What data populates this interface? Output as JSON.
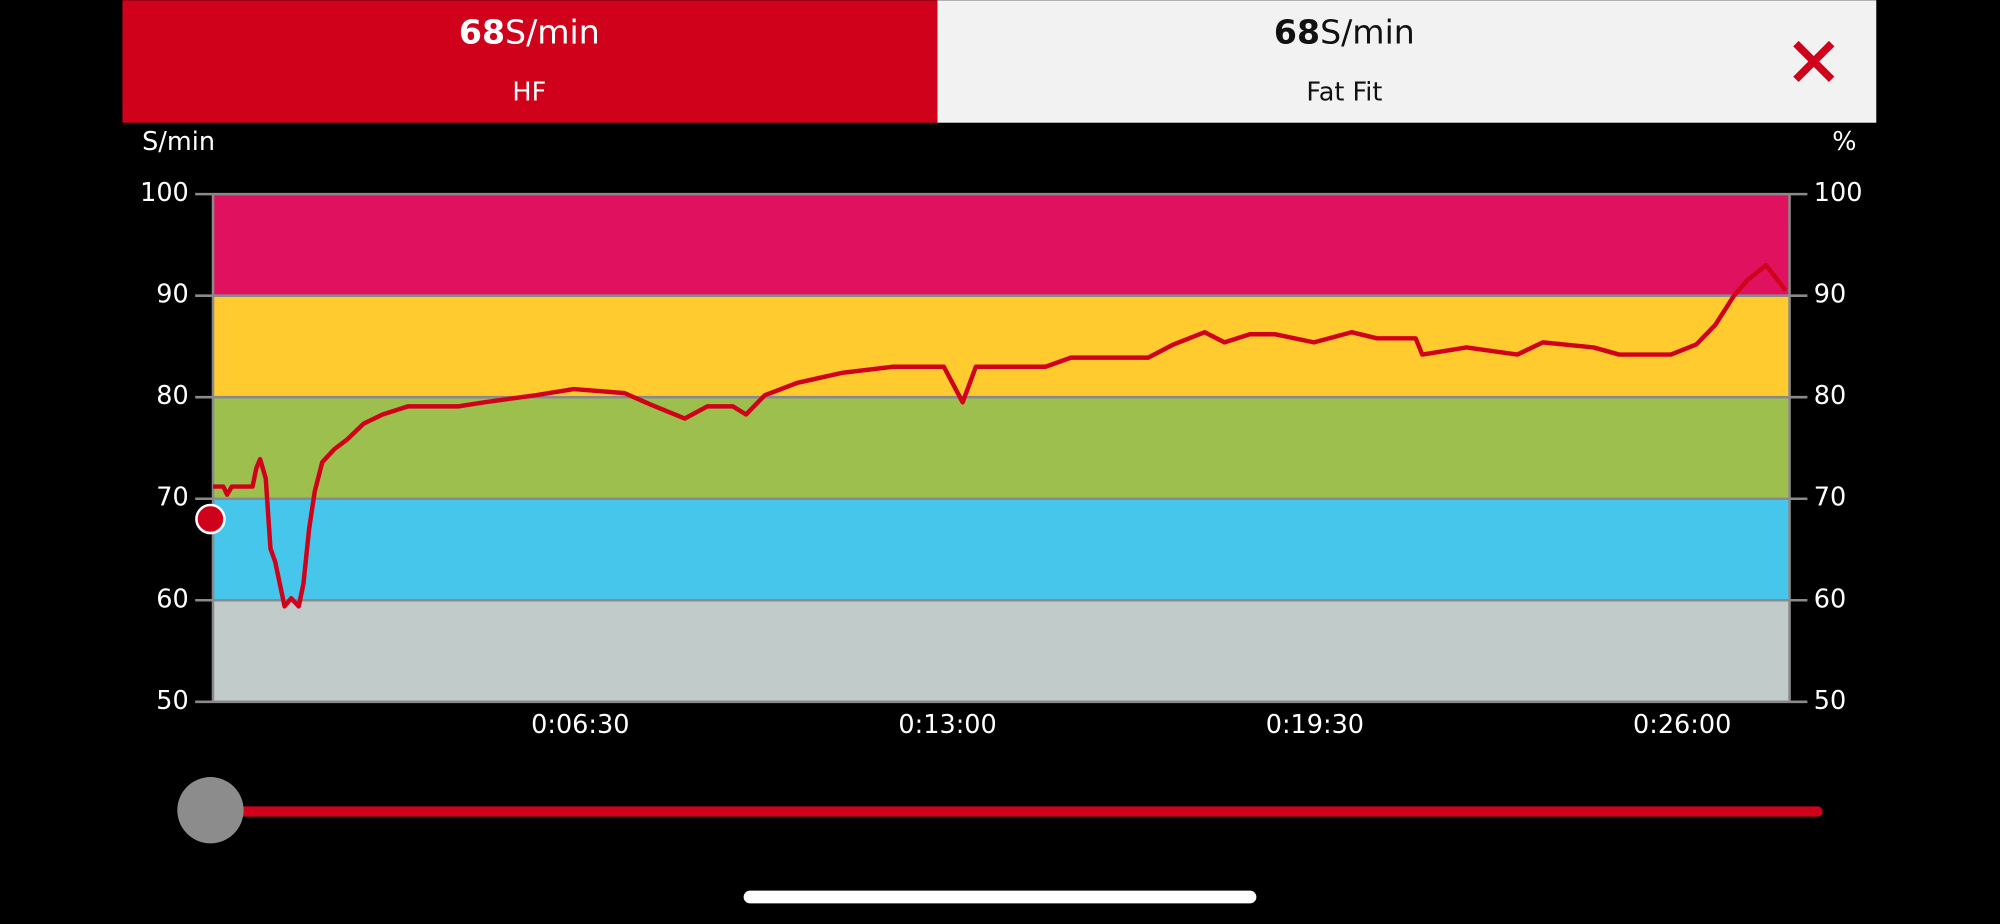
{
  "header": {
    "left": {
      "value": 68,
      "unit": "S/min",
      "label": "HF"
    },
    "right": {
      "value": 68,
      "unit": "S/min",
      "label": "Fat Fit"
    }
  },
  "chart_data": {
    "type": "line",
    "y_label": "S/min",
    "y2_label": "%",
    "xlim": [
      0,
      1674
    ],
    "xticks": [
      {
        "value": 390,
        "label": "0:06:30"
      },
      {
        "value": 780,
        "label": "0:13:00"
      },
      {
        "value": 1170,
        "label": "0:19:30"
      },
      {
        "value": 1560,
        "label": "0:26:00"
      }
    ],
    "ylim": [
      50,
      100
    ],
    "yticks": [
      100,
      90,
      80,
      70,
      60,
      50
    ],
    "y2lim": [
      50,
      100
    ],
    "y2ticks": [
      100,
      90,
      80,
      70,
      60,
      50
    ],
    "bands": [
      {
        "from": 50,
        "to": 60,
        "color": "#c1cbca"
      },
      {
        "from": 60,
        "to": 70,
        "color": "#47c6ec"
      },
      {
        "from": 70,
        "to": 80,
        "color": "#9dbf4d"
      },
      {
        "from": 80,
        "to": 90,
        "color": "#ffcb2f"
      },
      {
        "from": 90,
        "to": 100,
        "color": "#e0115f"
      }
    ],
    "series": [
      {
        "color": "#d0021b",
        "x": [
          0,
          11,
          15,
          20,
          42,
          46,
          50,
          56,
          61,
          66,
          76,
          83,
          91,
          96,
          102,
          108,
          116,
          129,
          142,
          160,
          180,
          207,
          261,
          288,
          343,
          383,
          437,
          464,
          501,
          525,
          552,
          566,
          586,
          620,
          668,
          722,
          776,
          796,
          810,
          884,
          911,
          993,
          1020,
          1053,
          1074,
          1101,
          1128,
          1169,
          1209,
          1236,
          1277,
          1284,
          1331,
          1385,
          1412,
          1466,
          1493,
          1548,
          1575,
          1595,
          1615,
          1629,
          1649,
          1660,
          1670
        ],
        "values": [
          71.2,
          71.2,
          70.4,
          71.2,
          71.2,
          73,
          73.9,
          72,
          65.1,
          63.8,
          59.4,
          60.2,
          59.4,
          61.6,
          67,
          70.7,
          73.6,
          74.9,
          75.8,
          77.4,
          78.3,
          79.1,
          79.1,
          79.5,
          80.2,
          80.8,
          80.4,
          79.3,
          77.9,
          79.1,
          79.1,
          78.3,
          80.2,
          81.4,
          82.4,
          83,
          83,
          79.5,
          83,
          83,
          83.9,
          83.9,
          85.2,
          86.4,
          85.4,
          86.2,
          86.2,
          85.4,
          86.4,
          85.8,
          85.8,
          84.2,
          84.9,
          84.2,
          85.4,
          84.9,
          84.2,
          84.2,
          85.2,
          87.1,
          90,
          91.5,
          93,
          91.7,
          90.5
        ]
      }
    ]
  }
}
